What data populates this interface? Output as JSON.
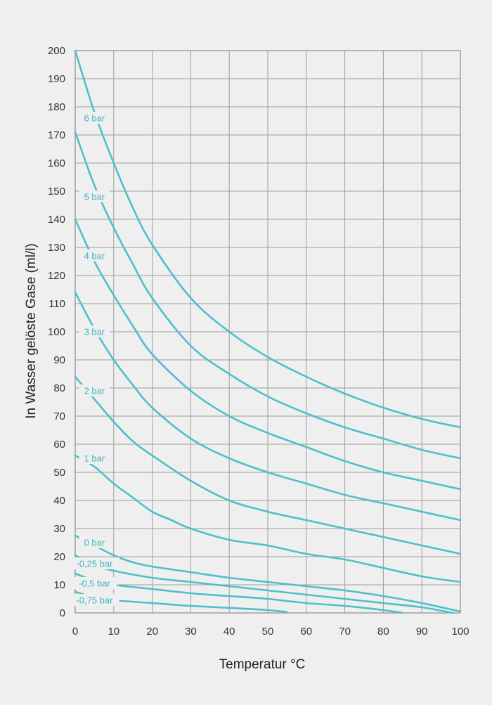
{
  "chart_data": {
    "type": "line",
    "xlabel": "Temperatur °C",
    "ylabel": "In Wasser gelöste Gase (ml/l)",
    "xlim": [
      0,
      100
    ],
    "ylim": [
      0,
      200
    ],
    "xticks": [
      0,
      10,
      20,
      30,
      40,
      50,
      60,
      70,
      80,
      90,
      100
    ],
    "yticks": [
      0,
      10,
      20,
      30,
      40,
      50,
      60,
      70,
      80,
      90,
      100,
      110,
      120,
      130,
      140,
      150,
      160,
      170,
      180,
      190,
      200
    ],
    "grid": true,
    "line_color": "#4fbfcb",
    "label_color": "#3db5c2",
    "series": [
      {
        "name": "6 bar",
        "label_at": [
          5,
          176
        ],
        "x": [
          0,
          5,
          10,
          15,
          20,
          30,
          40,
          50,
          60,
          70,
          80,
          90,
          100
        ],
        "y": [
          200,
          178,
          160,
          144,
          131,
          112,
          100,
          91,
          84,
          78,
          73,
          69,
          66
        ]
      },
      {
        "name": "5 bar",
        "label_at": [
          5,
          148
        ],
        "x": [
          0,
          5,
          10,
          15,
          20,
          30,
          40,
          50,
          60,
          70,
          80,
          90,
          100
        ],
        "y": [
          171,
          152,
          137,
          124,
          112,
          95,
          85,
          77,
          71,
          66,
          62,
          58,
          55
        ]
      },
      {
        "name": "4 bar",
        "label_at": [
          5,
          127
        ],
        "x": [
          0,
          5,
          10,
          15,
          20,
          30,
          40,
          50,
          60,
          70,
          80,
          90,
          100
        ],
        "y": [
          140,
          125,
          113,
          102,
          92,
          79,
          70,
          64,
          59,
          54,
          50,
          47,
          44
        ]
      },
      {
        "name": "3 bar",
        "label_at": [
          5,
          100
        ],
        "x": [
          0,
          5,
          10,
          15,
          20,
          30,
          40,
          50,
          60,
          70,
          80,
          90,
          100
        ],
        "y": [
          114,
          101,
          90,
          81,
          73,
          62,
          55,
          50,
          46,
          42,
          39,
          36,
          33
        ]
      },
      {
        "name": "2 bar",
        "label_at": [
          5,
          79
        ],
        "x": [
          0,
          5,
          10,
          15,
          20,
          30,
          40,
          50,
          60,
          70,
          80,
          90,
          100
        ],
        "y": [
          84,
          76,
          68,
          61,
          56,
          47,
          40,
          36,
          33,
          30,
          27,
          24,
          21
        ]
      },
      {
        "name": "1 bar",
        "label_at": [
          5,
          55
        ],
        "x": [
          0,
          5,
          10,
          15,
          20,
          25,
          30,
          40,
          50,
          60,
          70,
          80,
          90,
          100
        ],
        "y": [
          56,
          52,
          46,
          41,
          36,
          33,
          30,
          26,
          24,
          21,
          19,
          16,
          13,
          11
        ]
      },
      {
        "name": "0 bar",
        "label_at": [
          5,
          25
        ],
        "x": [
          0,
          5,
          10,
          15,
          20,
          30,
          40,
          50,
          60,
          70,
          80,
          90,
          100
        ],
        "y": [
          27.5,
          24,
          20.5,
          18,
          16.5,
          14.5,
          12.5,
          11,
          9.5,
          8,
          6,
          3.5,
          0.5
        ]
      },
      {
        "name": "-0,25 bar",
        "label_at": [
          5,
          17.5
        ],
        "x": [
          0,
          5,
          10,
          20,
          30,
          40,
          50,
          60,
          70,
          80,
          90,
          98
        ],
        "y": [
          20.5,
          17,
          15,
          12.5,
          11,
          9.5,
          8,
          6.5,
          5,
          3.5,
          2,
          0
        ]
      },
      {
        "name": "-0,5 bar",
        "label_at": [
          5,
          10.5
        ],
        "x": [
          0,
          5,
          10,
          20,
          30,
          40,
          50,
          60,
          70,
          80,
          85
        ],
        "y": [
          14,
          11.5,
          10,
          8.5,
          7,
          6,
          5,
          3.5,
          2.5,
          1,
          0
        ]
      },
      {
        "name": "-0,75 bar",
        "label_at": [
          5,
          4.5
        ],
        "x": [
          0,
          5,
          10,
          20,
          30,
          40,
          50,
          55
        ],
        "y": [
          7.5,
          5.5,
          4.5,
          3.5,
          2.5,
          1.8,
          1,
          0.3
        ]
      }
    ]
  }
}
